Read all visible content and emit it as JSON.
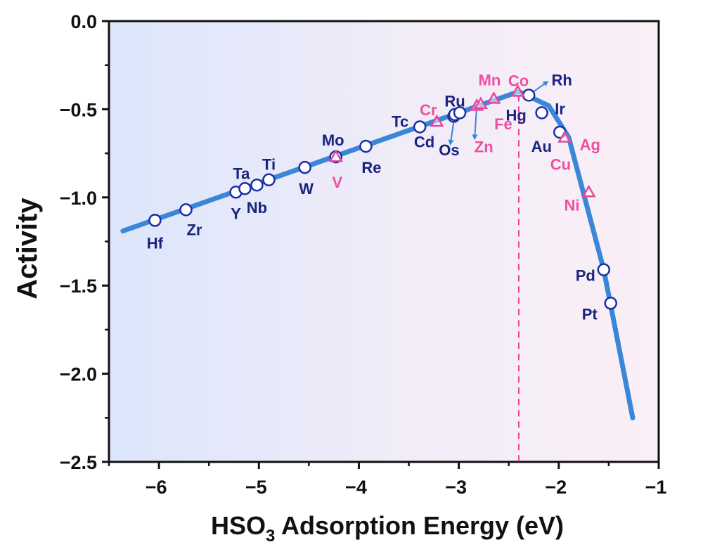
{
  "chart_data": {
    "type": "line",
    "title": "",
    "xlabel": "HSO3 Adsorption Energy (eV)",
    "xlabel_parts": {
      "main": "HSO",
      "sub": "3",
      "rest": " Adsorption Energy (eV)"
    },
    "ylabel": "Activity",
    "xlim": [
      -6.5,
      -1
    ],
    "ylim": [
      -2.5,
      0.0
    ],
    "x_ticks": [
      -6,
      -5,
      -4,
      -3,
      -2,
      -1
    ],
    "x_tick_labels": [
      "−6",
      "−5",
      "−4",
      "−3",
      "−2",
      "−1"
    ],
    "x_minor_ticks": [
      -6.5,
      -5.5,
      -4.5,
      -3.5,
      -2.5,
      -1.5
    ],
    "y_ticks": [
      0.0,
      -0.5,
      -1.0,
      -1.5,
      -2.0,
      -2.5
    ],
    "y_tick_labels": [
      "0.0",
      "−0.5",
      "−1.0",
      "−1.5",
      "−2.0",
      "−2.5"
    ],
    "y_minor_ticks": [
      -0.25,
      -0.75,
      -1.25,
      -1.75,
      -2.25
    ],
    "grid": false,
    "volcano_line": {
      "name": "activity volcano",
      "color": "#3a87d8",
      "x": [
        -6.36,
        -2.4,
        -2.1,
        -1.9,
        -1.55,
        -1.26
      ],
      "y": [
        -1.19,
        -0.4,
        -0.48,
        -0.66,
        -1.41,
        -2.25
      ]
    },
    "peak_marker": {
      "x": -2.4,
      "style": "dashed",
      "color": "#e8459a"
    },
    "series": [
      {
        "name": "circle-markers",
        "marker": "circle",
        "color": "#1a2fa8",
        "label_color": "#1a237e",
        "points": [
          {
            "label": "Hf",
            "x": -6.04,
            "y": -1.13,
            "label_pos": "below"
          },
          {
            "label": "Zr",
            "x": -5.73,
            "y": -1.07,
            "label_pos": "below-right"
          },
          {
            "label": "Y",
            "x": -5.23,
            "y": -0.97,
            "label_pos": "below"
          },
          {
            "label": "Ta",
            "x": -5.14,
            "y": -0.95,
            "label_pos": "above"
          },
          {
            "label": "Nb",
            "x": -5.02,
            "y": -0.93,
            "label_pos": "below"
          },
          {
            "label": "Ti",
            "x": -4.9,
            "y": -0.9,
            "label_pos": "above"
          },
          {
            "label": "W",
            "x": -4.54,
            "y": -0.83,
            "label_pos": "below"
          },
          {
            "label": "Mo",
            "x": -4.23,
            "y": -0.77,
            "label_pos": "above"
          },
          {
            "label": "Re",
            "x": -3.93,
            "y": -0.71,
            "label_pos": "below"
          },
          {
            "label": "Tc",
            "x": -3.39,
            "y": -0.6,
            "label_pos": "above-left"
          },
          {
            "label": "Cd",
            "x": -3.05,
            "y": -0.54,
            "label_pos": "below-left"
          },
          {
            "label": "Os",
            "x": -3.04,
            "y": -0.53,
            "label_pos": "arrow-down"
          },
          {
            "label": "Ru",
            "x": -2.99,
            "y": -0.52,
            "label_pos": "above"
          },
          {
            "label": "Hg",
            "x": -2.3,
            "y": -0.42,
            "label_pos": "below-left"
          },
          {
            "label": "Rh",
            "x": -2.3,
            "y": -0.42,
            "label_pos": "arrow-up-right"
          },
          {
            "label": "Ir",
            "x": -2.17,
            "y": -0.52,
            "label_pos": "right"
          },
          {
            "label": "Au",
            "x": -1.99,
            "y": -0.63,
            "label_pos": "below-left"
          },
          {
            "label": "Pd",
            "x": -1.55,
            "y": -1.41,
            "label_pos": "left"
          },
          {
            "label": "Pt",
            "x": -1.48,
            "y": -1.6,
            "label_pos": "left"
          }
        ]
      },
      {
        "name": "triangle-markers",
        "marker": "triangle",
        "color": "#e8459a",
        "label_color": "#ee4fa0",
        "points": [
          {
            "label": "V",
            "x": -4.23,
            "y": -0.77,
            "label_pos": "below"
          },
          {
            "label": "Cr",
            "x": -3.22,
            "y": -0.57,
            "label_pos": "above"
          },
          {
            "label": "Zn",
            "x": -2.82,
            "y": -0.48,
            "label_pos": "arrow-down"
          },
          {
            "label": "Fe",
            "x": -2.78,
            "y": -0.47,
            "label_pos": "below-right"
          },
          {
            "label": "Mn",
            "x": -2.65,
            "y": -0.44,
            "label_pos": "above"
          },
          {
            "label": "Co",
            "x": -2.41,
            "y": -0.4,
            "label_pos": "above"
          },
          {
            "label": "Ag",
            "x": -1.94,
            "y": -0.66,
            "label_pos": "right"
          },
          {
            "label": "Cu",
            "x": -1.7,
            "y": -0.97,
            "label_pos": "above-left"
          },
          {
            "label": "Ni",
            "x": -1.7,
            "y": -0.97,
            "label_pos": "left"
          }
        ]
      }
    ],
    "background_gradient": {
      "left": "#dce6fb",
      "right": "#fbeff6"
    }
  }
}
